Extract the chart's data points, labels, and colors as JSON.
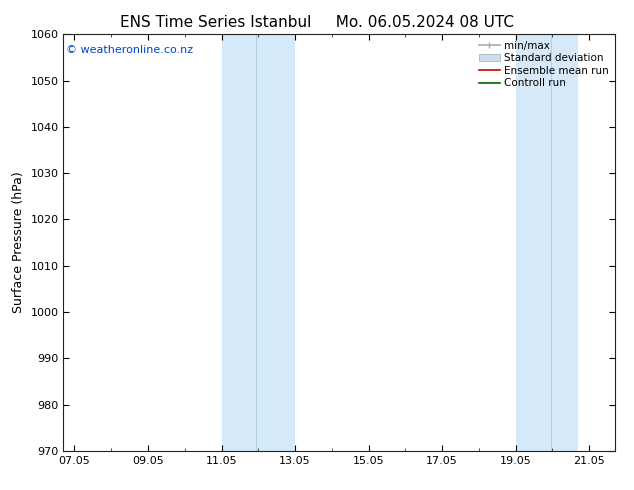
{
  "title_left": "ENS Time Series Istanbul",
  "title_right": "Mo. 06.05.2024 08 UTC",
  "ylabel": "Surface Pressure (hPa)",
  "ylim": [
    970,
    1060
  ],
  "yticks": [
    970,
    980,
    990,
    1000,
    1010,
    1020,
    1030,
    1040,
    1050,
    1060
  ],
  "xtick_labels": [
    "07.05",
    "09.05",
    "11.05",
    "13.05",
    "15.05",
    "17.05",
    "19.05",
    "21.05"
  ],
  "xtick_positions": [
    0,
    2,
    4,
    6,
    8,
    10,
    12,
    14
  ],
  "xlim": [
    -0.3,
    14.7
  ],
  "shaded_bands": [
    {
      "x_start": 4.0,
      "x_end": 4.95,
      "color": "#d6e9f8"
    },
    {
      "x_start": 4.95,
      "x_end": 6.0,
      "color": "#d6e9f8"
    },
    {
      "x_start": 12.0,
      "x_end": 12.95,
      "color": "#d6e9f8"
    },
    {
      "x_start": 12.95,
      "x_end": 13.7,
      "color": "#d6e9f8"
    }
  ],
  "divider_lines": [
    4.95,
    12.95
  ],
  "copyright_text": "© weatheronline.co.nz",
  "copyright_color": "#0044cc",
  "background_color": "#ffffff",
  "plot_bg_color": "#ffffff",
  "legend_items": [
    {
      "label": "min/max",
      "color": "#aaaaaa",
      "lw": 1.2
    },
    {
      "label": "Standard deviation",
      "color": "#ccddee",
      "lw": 6
    },
    {
      "label": "Ensemble mean run",
      "color": "#cc0000",
      "lw": 1.2
    },
    {
      "label": "Controll run",
      "color": "#006600",
      "lw": 1.2
    }
  ],
  "title_fontsize": 11,
  "label_fontsize": 9,
  "tick_fontsize": 8,
  "legend_fontsize": 7.5,
  "copyright_fontsize": 8
}
